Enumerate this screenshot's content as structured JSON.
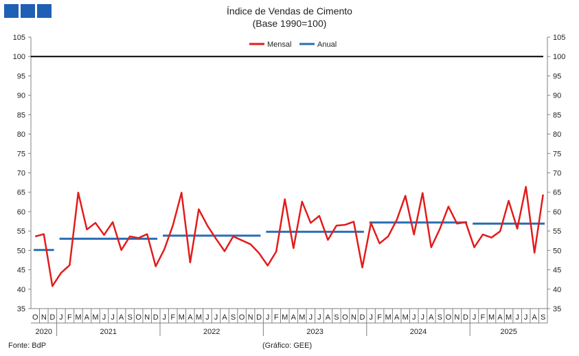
{
  "logo": {
    "color": "#1f5fb4",
    "blocks": 3
  },
  "title": {
    "line1": "Índice de Vendas de Cimento",
    "line2": "(Base 1990=100)"
  },
  "footer": {
    "source": "Fonte: BdP",
    "credit": "(Gráfico: GEE)"
  },
  "chart_data": {
    "type": "line",
    "title": "Índice de Vendas de Cimento (Base 1990=100)",
    "ylim": [
      35,
      105
    ],
    "yticks": [
      35,
      40,
      45,
      50,
      55,
      60,
      65,
      70,
      75,
      80,
      85,
      90,
      95,
      100,
      105
    ],
    "reference_line": 100,
    "legend": [
      "Mensal",
      "Anual"
    ],
    "colors": {
      "Mensal": "#e31b1b",
      "Anual": "#2a6db3",
      "reference": "#000000"
    },
    "month_labels": [
      "O",
      "N",
      "D",
      "J",
      "F",
      "M",
      "A",
      "M",
      "J",
      "J",
      "A",
      "S",
      "O",
      "N",
      "D",
      "J",
      "F",
      "M",
      "A",
      "M",
      "J",
      "J",
      "A",
      "S",
      "O",
      "N",
      "D",
      "J",
      "F",
      "M",
      "A",
      "M",
      "J",
      "J",
      "A",
      "S",
      "O",
      "N",
      "D",
      "J",
      "F",
      "M",
      "A",
      "M",
      "J",
      "J",
      "A",
      "S",
      "O",
      "N",
      "D",
      "J",
      "F",
      "M",
      "A",
      "M",
      "J",
      "J",
      "A",
      "S"
    ],
    "years": [
      {
        "label": "2020",
        "start": 0,
        "end": 2
      },
      {
        "label": "2021",
        "start": 3,
        "end": 14
      },
      {
        "label": "2022",
        "start": 15,
        "end": 26
      },
      {
        "label": "2023",
        "start": 27,
        "end": 38
      },
      {
        "label": "2024",
        "start": 39,
        "end": 50
      },
      {
        "label": "2025",
        "start": 51,
        "end": 59
      }
    ],
    "series": [
      {
        "name": "Mensal",
        "values": [
          53.6,
          54.2,
          40.8,
          44.2,
          46.2,
          64.9,
          55.4,
          57.1,
          54.0,
          57.3,
          50.1,
          53.6,
          53.2,
          54.2,
          45.9,
          50.3,
          56.5,
          64.9,
          46.9,
          60.6,
          56.4,
          53.0,
          49.8,
          53.6,
          52.6,
          51.6,
          49.3,
          46.1,
          49.7,
          63.2,
          50.6,
          62.6,
          57.1,
          58.9,
          52.7,
          56.4,
          56.6,
          57.4,
          45.6,
          57.1,
          51.8,
          53.6,
          57.9,
          64.1,
          54.1,
          64.8,
          50.8,
          55.5,
          61.3,
          56.9,
          57.3,
          50.8,
          54.1,
          53.3,
          54.9,
          62.8,
          55.6,
          66.4,
          49.4,
          64.4
        ]
      },
      {
        "name": "Anual",
        "segments": [
          {
            "year": "2020",
            "start": 0,
            "end": 2,
            "value": 50.1
          },
          {
            "year": "2021",
            "start": 3,
            "end": 14,
            "value": 53.0
          },
          {
            "year": "2022",
            "start": 15,
            "end": 26,
            "value": 53.8
          },
          {
            "year": "2023",
            "start": 27,
            "end": 38,
            "value": 54.8
          },
          {
            "year": "2024",
            "start": 39,
            "end": 50,
            "value": 57.2
          },
          {
            "year": "2025",
            "start": 51,
            "end": 59,
            "value": 56.9
          }
        ]
      }
    ]
  }
}
